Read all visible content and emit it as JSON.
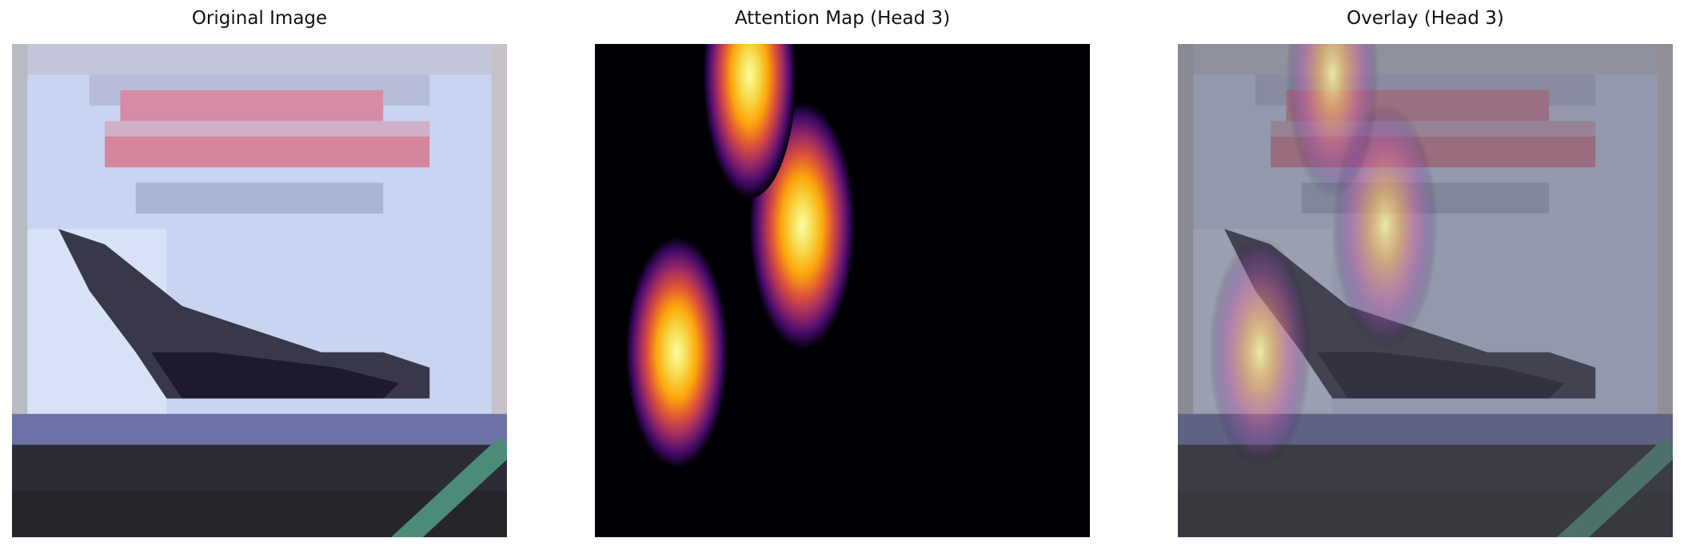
{
  "panels": [
    {
      "title": "Original Image"
    },
    {
      "title": "Attention Map (Head 3)"
    },
    {
      "title": "Overlay (Head 3)"
    }
  ]
}
